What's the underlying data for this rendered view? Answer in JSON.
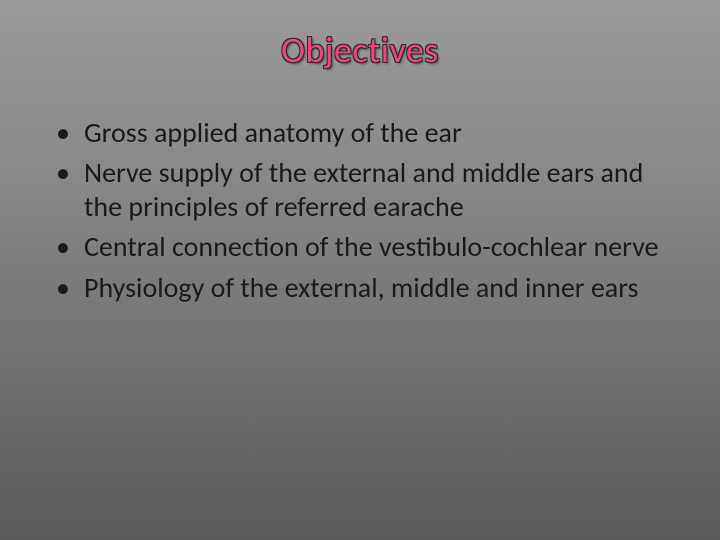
{
  "slide": {
    "title": "Objectives",
    "title_color": "#e84a7a",
    "title_fontsize": 36,
    "bullets": [
      "Gross applied anatomy of the ear",
      "Nerve supply of the external and middle ears and the principles of referred earache",
      "Central connection of the vestibulo-cochlear nerve",
      "Physiology of the external, middle and inner ears"
    ],
    "bullet_fontsize": 28,
    "bullet_color": "#1a1a1a",
    "background_gradient": [
      "#9a9a9a",
      "#8a8a8a",
      "#6f6f6f",
      "#5a5a5a"
    ]
  }
}
